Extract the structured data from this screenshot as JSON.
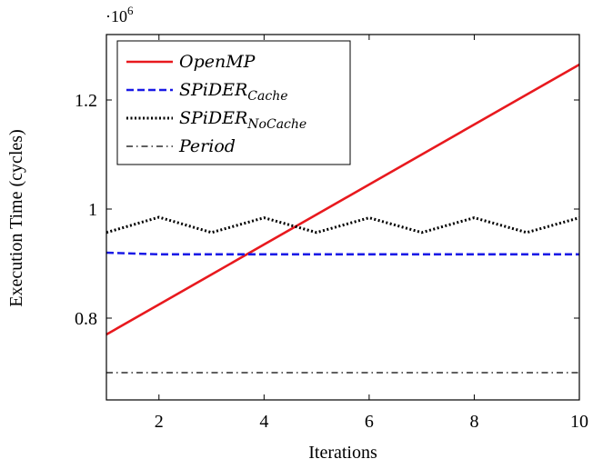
{
  "chart_data": {
    "type": "line",
    "xlabel": "Iterations",
    "ylabel": "Execution Time (cycles)",
    "xlim": [
      1,
      10
    ],
    "ylim": [
      650000,
      1320000
    ],
    "y_multiplier_base": "·10",
    "y_multiplier_exp": "6",
    "x_ticks": [
      2,
      4,
      6,
      8,
      10
    ],
    "x_tick_labels": [
      "2",
      "4",
      "6",
      "8",
      "10"
    ],
    "y_ticks": [
      800000,
      1000000,
      1200000
    ],
    "y_tick_labels": [
      "0.8",
      "1",
      "1.2"
    ],
    "grid": false,
    "legend_position": "top-left",
    "series": [
      {
        "name": "OpenMP",
        "name_base": "OpenMP",
        "name_sub": "",
        "color": "#e8191e",
        "style": "solid",
        "x": [
          1,
          2,
          3,
          4,
          5,
          6,
          7,
          8,
          9,
          10
        ],
        "y": [
          770000,
          825000,
          880000,
          935000,
          990000,
          1045000,
          1100000,
          1155000,
          1210000,
          1265000
        ]
      },
      {
        "name": "SPiDERCache",
        "name_base": "SPiDER",
        "name_sub": "Cache",
        "color": "#1a1ae6",
        "style": "dashed",
        "x": [
          1,
          2,
          3,
          4,
          5,
          6,
          7,
          8,
          9,
          10
        ],
        "y": [
          920000,
          917000,
          917000,
          917000,
          917000,
          917000,
          917000,
          917000,
          917000,
          917000
        ]
      },
      {
        "name": "SPiDERNoCache",
        "name_base": "SPiDER",
        "name_sub": "NoCache",
        "color": "#000000",
        "style": "dotted",
        "x": [
          1,
          2,
          3,
          4,
          5,
          6,
          7,
          8,
          9,
          10
        ],
        "y": [
          957000,
          985000,
          957000,
          984000,
          957000,
          984000,
          957000,
          984000,
          957000,
          984000
        ]
      },
      {
        "name": "Period",
        "name_base": "Period",
        "name_sub": "",
        "color": "#000000",
        "style": "dashdot",
        "x": [
          1,
          10
        ],
        "y": [
          700000,
          700000
        ]
      }
    ]
  }
}
